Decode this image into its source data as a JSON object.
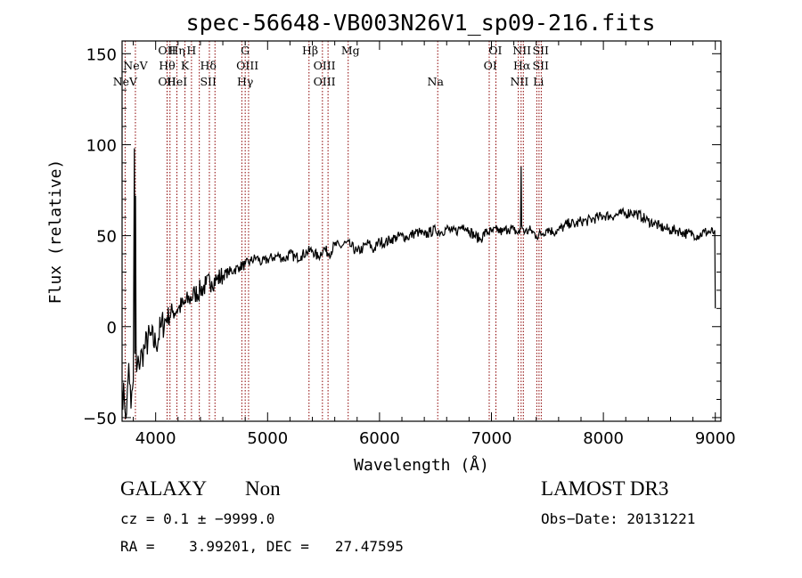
{
  "chart_data": {
    "type": "line",
    "title": "spec-56648-VB003N26V1_sp09-216.fits",
    "xlabel": "Wavelength (Å)",
    "ylabel": "Flux (relative)",
    "xlim": [
      3700,
      9050
    ],
    "ylim": [
      -52,
      157
    ],
    "xticks": [
      4000,
      5000,
      6000,
      7000,
      8000,
      9000
    ],
    "xtick_labels": [
      "4000",
      "5000",
      "6000",
      "7000",
      "8000",
      "9000"
    ],
    "yticks": [
      -50,
      0,
      50,
      100,
      150
    ],
    "ytick_labels": [
      "−50",
      "0",
      "50",
      "100",
      "150"
    ],
    "spectrum": {
      "x": [
        3700,
        3720,
        3740,
        3760,
        3780,
        3800,
        3810,
        3815,
        3820,
        3825,
        3830,
        3850,
        3880,
        3900,
        3950,
        4000,
        4050,
        4100,
        4150,
        4200,
        4250,
        4300,
        4350,
        4400,
        4450,
        4500,
        4550,
        4600,
        4650,
        4700,
        4750,
        4800,
        4850,
        4900,
        4950,
        5000,
        5050,
        5100,
        5150,
        5200,
        5250,
        5300,
        5350,
        5400,
        5450,
        5500,
        5550,
        5600,
        5650,
        5700,
        5750,
        5800,
        5850,
        5900,
        5950,
        6000,
        6050,
        6100,
        6150,
        6200,
        6250,
        6300,
        6350,
        6400,
        6450,
        6500,
        6550,
        6600,
        6650,
        6700,
        6750,
        6800,
        6850,
        6900,
        6950,
        7000,
        7050,
        7100,
        7150,
        7200,
        7250,
        7260,
        7265,
        7270,
        7280,
        7300,
        7350,
        7400,
        7450,
        7500,
        7550,
        7600,
        7650,
        7700,
        7750,
        7800,
        7850,
        7900,
        7950,
        8000,
        8050,
        8100,
        8150,
        8200,
        8250,
        8300,
        8350,
        8400,
        8450,
        8500,
        8550,
        8600,
        8650,
        8700,
        8750,
        8800,
        8850,
        8900,
        8950,
        8990,
        8995,
        9000
      ],
      "y": [
        -35,
        -40,
        -48,
        -20,
        -45,
        -30,
        98,
        -15,
        72,
        -10,
        -25,
        -20,
        -15,
        -12,
        -5,
        -10,
        0,
        5,
        8,
        10,
        12,
        15,
        18,
        20,
        23,
        25,
        26,
        28,
        30,
        31,
        33,
        34,
        36,
        38,
        35,
        37,
        38,
        39,
        37,
        40,
        38,
        39,
        41,
        42,
        38,
        43,
        40,
        45,
        44,
        46,
        44,
        41,
        43,
        46,
        42,
        47,
        46,
        48,
        49,
        50,
        49,
        51,
        52,
        50,
        52,
        53,
        52,
        54,
        52,
        53,
        56,
        53,
        50,
        48,
        52,
        52,
        53,
        52,
        54,
        53,
        51,
        55,
        88,
        56,
        54,
        52,
        53,
        50,
        51,
        54,
        52,
        53,
        55,
        57,
        56,
        58,
        58,
        59,
        60,
        61,
        61,
        61,
        62,
        62,
        63,
        62,
        60,
        58,
        57,
        55,
        54,
        53,
        53,
        52,
        51,
        51,
        50,
        52,
        52,
        52,
        53,
        10
      ]
    },
    "line_markers": [
      {
        "x": 3727,
        "row": 3,
        "label": "NeV"
      },
      {
        "x": 3819,
        "row": 2,
        "label": "NeV"
      },
      {
        "x": 4102,
        "row": 1,
        "label": "OII"
      },
      {
        "x": 4102,
        "row": 2,
        "label": "Hθ"
      },
      {
        "x": 4102,
        "row": 3,
        "label": "OII"
      },
      {
        "x": 4190,
        "row": 1,
        "label": "Hη"
      },
      {
        "x": 4190,
        "row": 3,
        "label": "HeI"
      },
      {
        "x": 4262,
        "row": 2,
        "label": "K"
      },
      {
        "x": 4320,
        "row": 1,
        "label": "H"
      },
      {
        "x": 4470,
        "row": 2,
        "label": "Hδ"
      },
      {
        "x": 4470,
        "row": 3,
        "label": "SII"
      },
      {
        "x": 4800,
        "row": 1,
        "label": "G"
      },
      {
        "x": 4820,
        "row": 2,
        "label": "OIII"
      },
      {
        "x": 4800,
        "row": 3,
        "label": "Hγ"
      },
      {
        "x": 5380,
        "row": 1,
        "label": "Hβ"
      },
      {
        "x": 5508,
        "row": 2,
        "label": "OIII"
      },
      {
        "x": 5508,
        "row": 3,
        "label": "OIII"
      },
      {
        "x": 5740,
        "row": 1,
        "label": "Mg"
      },
      {
        "x": 6500,
        "row": 3,
        "label": "Na"
      },
      {
        "x": 7035,
        "row": 1,
        "label": "OI"
      },
      {
        "x": 6990,
        "row": 2,
        "label": "OI"
      },
      {
        "x": 7272,
        "row": 1,
        "label": "NII"
      },
      {
        "x": 7272,
        "row": 2,
        "label": "Hα"
      },
      {
        "x": 7250,
        "row": 3,
        "label": "NII"
      },
      {
        "x": 7440,
        "row": 1,
        "label": "SII"
      },
      {
        "x": 7440,
        "row": 2,
        "label": "SII"
      },
      {
        "x": 7420,
        "row": 3,
        "label": "Li"
      }
    ],
    "line_positions": [
      3727,
      3819,
      4102,
      4128,
      4190,
      4262,
      4320,
      4390,
      4480,
      4530,
      4770,
      4800,
      4830,
      5370,
      5490,
      5540,
      5720,
      6520,
      6980,
      7040,
      7240,
      7265,
      7285,
      7405,
      7425,
      7445
    ],
    "colors": {
      "spectrum": "#000000",
      "markers": "#8b0000",
      "axes": "#000000"
    }
  },
  "footer": {
    "object_class": "GALAXY",
    "subclass": "Non",
    "redshift": "cz = 0.1 ± −9999.0",
    "coords": "RA =    3.99201, DEC =   27.47595",
    "survey": "LAMOST DR3",
    "obs_date": "Obs−Date: 20131221"
  }
}
